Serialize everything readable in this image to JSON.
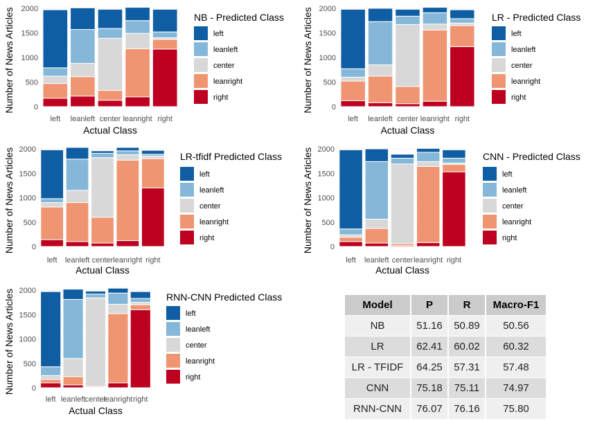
{
  "chart_data": [
    {
      "type": "bar",
      "stacked": true,
      "legend_title": "NB - Predicted Class",
      "xlabel": "Actual Class",
      "ylabel": "Number of News Articles",
      "categories": [
        "left",
        "leanleft",
        "center",
        "leanright",
        "right"
      ],
      "ylim": [
        0,
        2000
      ],
      "yticks": [
        0,
        500,
        1000,
        1500,
        2000
      ],
      "series": [
        {
          "name": "right",
          "values": [
            170,
            215,
            130,
            200,
            1170
          ]
        },
        {
          "name": "leanright",
          "values": [
            300,
            395,
            200,
            980,
            200
          ]
        },
        {
          "name": "center",
          "values": [
            150,
            270,
            1060,
            310,
            30
          ]
        },
        {
          "name": "leanleft",
          "values": [
            170,
            690,
            200,
            260,
            120
          ]
        },
        {
          "name": "left",
          "values": [
            1180,
            440,
            390,
            270,
            460
          ]
        }
      ]
    },
    {
      "type": "bar",
      "stacked": true,
      "legend_title": "LR - Predicted Class",
      "xlabel": "Actual Class",
      "ylabel": "Number of News Articles",
      "categories": [
        "left",
        "leanleft",
        "center",
        "leanright",
        "right"
      ],
      "ylim": [
        0,
        2000
      ],
      "yticks": [
        0,
        500,
        1000,
        1500,
        2000
      ],
      "series": [
        {
          "name": "right",
          "values": [
            120,
            80,
            60,
            110,
            1220
          ]
        },
        {
          "name": "leanright",
          "values": [
            400,
            540,
            350,
            1450,
            430
          ]
        },
        {
          "name": "center",
          "values": [
            80,
            230,
            1260,
            120,
            50
          ]
        },
        {
          "name": "leanleft",
          "values": [
            170,
            880,
            170,
            230,
            90
          ]
        },
        {
          "name": "left",
          "values": [
            1210,
            270,
            140,
            110,
            180
          ]
        }
      ]
    },
    {
      "type": "bar",
      "stacked": true,
      "legend_title": "LR-tfidf Predicted Class",
      "xlabel": "Actual Class",
      "ylabel": "Number of News Articles",
      "categories": [
        "left",
        "leanleft",
        "center",
        "leanright",
        "right"
      ],
      "ylim": [
        0,
        2000
      ],
      "yticks": [
        0,
        500,
        1000,
        1500,
        2000
      ],
      "series": [
        {
          "name": "right",
          "values": [
            140,
            100,
            70,
            120,
            1200
          ]
        },
        {
          "name": "leanright",
          "values": [
            670,
            800,
            530,
            1650,
            600
          ]
        },
        {
          "name": "center",
          "values": [
            90,
            250,
            1220,
            110,
            50
          ]
        },
        {
          "name": "leanleft",
          "values": [
            80,
            640,
            90,
            80,
            40
          ]
        },
        {
          "name": "left",
          "values": [
            1000,
            240,
            50,
            70,
            80
          ]
        }
      ]
    },
    {
      "type": "bar",
      "stacked": true,
      "legend_title": "CNN - Predicted Class",
      "xlabel": "Actual Class",
      "ylabel": "Number of News Articles",
      "categories": [
        "left",
        "leanleft",
        "center",
        "leanright",
        "right"
      ],
      "ylim": [
        0,
        2000
      ],
      "yticks": [
        0,
        500,
        1000,
        1500,
        2000
      ],
      "series": [
        {
          "name": "right",
          "values": [
            100,
            70,
            20,
            80,
            1530
          ]
        },
        {
          "name": "leanright",
          "values": [
            90,
            300,
            40,
            1560,
            150
          ]
        },
        {
          "name": "center",
          "values": [
            50,
            190,
            1630,
            100,
            30
          ]
        },
        {
          "name": "leanleft",
          "values": [
            120,
            1180,
            120,
            190,
            100
          ]
        },
        {
          "name": "left",
          "values": [
            1620,
            260,
            80,
            80,
            170
          ]
        }
      ]
    },
    {
      "type": "bar",
      "stacked": true,
      "legend_title": "RNN-CNN Predicted Class",
      "xlabel": "Actual Class",
      "ylabel": "Number of News Articles",
      "categories": [
        "left",
        "leanleft",
        "center",
        "leanright",
        "right"
      ],
      "ylim": [
        0,
        2000
      ],
      "yticks": [
        0,
        500,
        1000,
        1500,
        2000
      ],
      "series": [
        {
          "name": "right",
          "values": [
            100,
            60,
            10,
            100,
            1600
          ]
        },
        {
          "name": "leanright",
          "values": [
            70,
            170,
            20,
            1420,
            100
          ]
        },
        {
          "name": "center",
          "values": [
            80,
            370,
            1810,
            190,
            50
          ]
        },
        {
          "name": "leanleft",
          "values": [
            180,
            1210,
            80,
            230,
            80
          ]
        },
        {
          "name": "left",
          "values": [
            1540,
            210,
            60,
            100,
            140
          ]
        }
      ]
    },
    {
      "type": "table",
      "columns": [
        "Model",
        "P",
        "R",
        "Macro-F1"
      ],
      "rows": [
        [
          "NB",
          "51.16",
          "50.89",
          "50.56"
        ],
        [
          "LR",
          "62.41",
          "60.02",
          "60.32"
        ],
        [
          "LR - TFIDF",
          "64.25",
          "57.31",
          "57.48"
        ],
        [
          "CNN",
          "75.18",
          "75.11",
          "74.97"
        ],
        [
          "RNN-CNN",
          "76.07",
          "76.16",
          "75.80"
        ]
      ]
    }
  ],
  "legend": {
    "labels": [
      "left",
      "leanleft",
      "center",
      "leanright",
      "right"
    ],
    "colors": {
      "left": "#0f5da2",
      "leanleft": "#85b8d8",
      "center": "#d8d8d8",
      "leanright": "#ef9572",
      "right": "#bd001f"
    }
  }
}
